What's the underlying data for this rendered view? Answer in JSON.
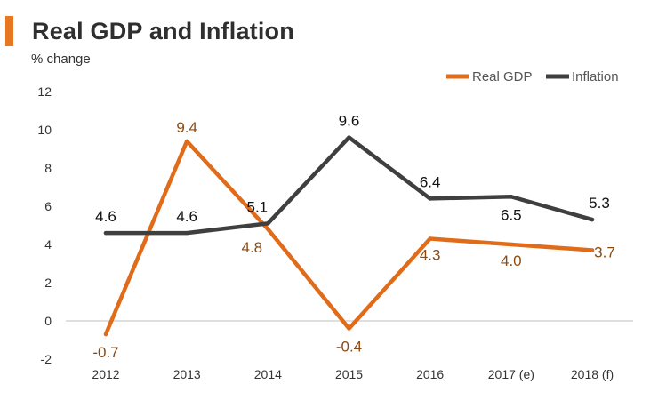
{
  "chart_data": {
    "type": "line",
    "title": "Real GDP and Inflation",
    "ylabel": "% change",
    "xlabel": "",
    "categories": [
      "2012",
      "2013",
      "2014",
      "2015",
      "2016",
      "2017 (e)",
      "2018 (f)"
    ],
    "ylim": [
      -2,
      12
    ],
    "yticks": [
      -2,
      0,
      2,
      4,
      6,
      8,
      10,
      12
    ],
    "legend": "top-right",
    "series": [
      {
        "name": "Real GDP",
        "color": "#E06C1A",
        "label_color": "#8B4A12",
        "values": [
          -0.7,
          9.4,
          4.8,
          -0.4,
          4.3,
          4.0,
          3.7
        ],
        "labels": [
          "-0.7",
          "9.4",
          "4.8",
          "-0.4",
          "4.3",
          "4.0",
          "3.7"
        ]
      },
      {
        "name": "Inflation",
        "color": "#3F3F3F",
        "label_color": "#111111",
        "values": [
          4.6,
          4.6,
          5.1,
          9.6,
          6.4,
          6.5,
          5.3
        ],
        "labels": [
          "4.6",
          "4.6",
          "5.1",
          "9.6",
          "6.4",
          "6.5",
          "5.3"
        ]
      }
    ]
  }
}
